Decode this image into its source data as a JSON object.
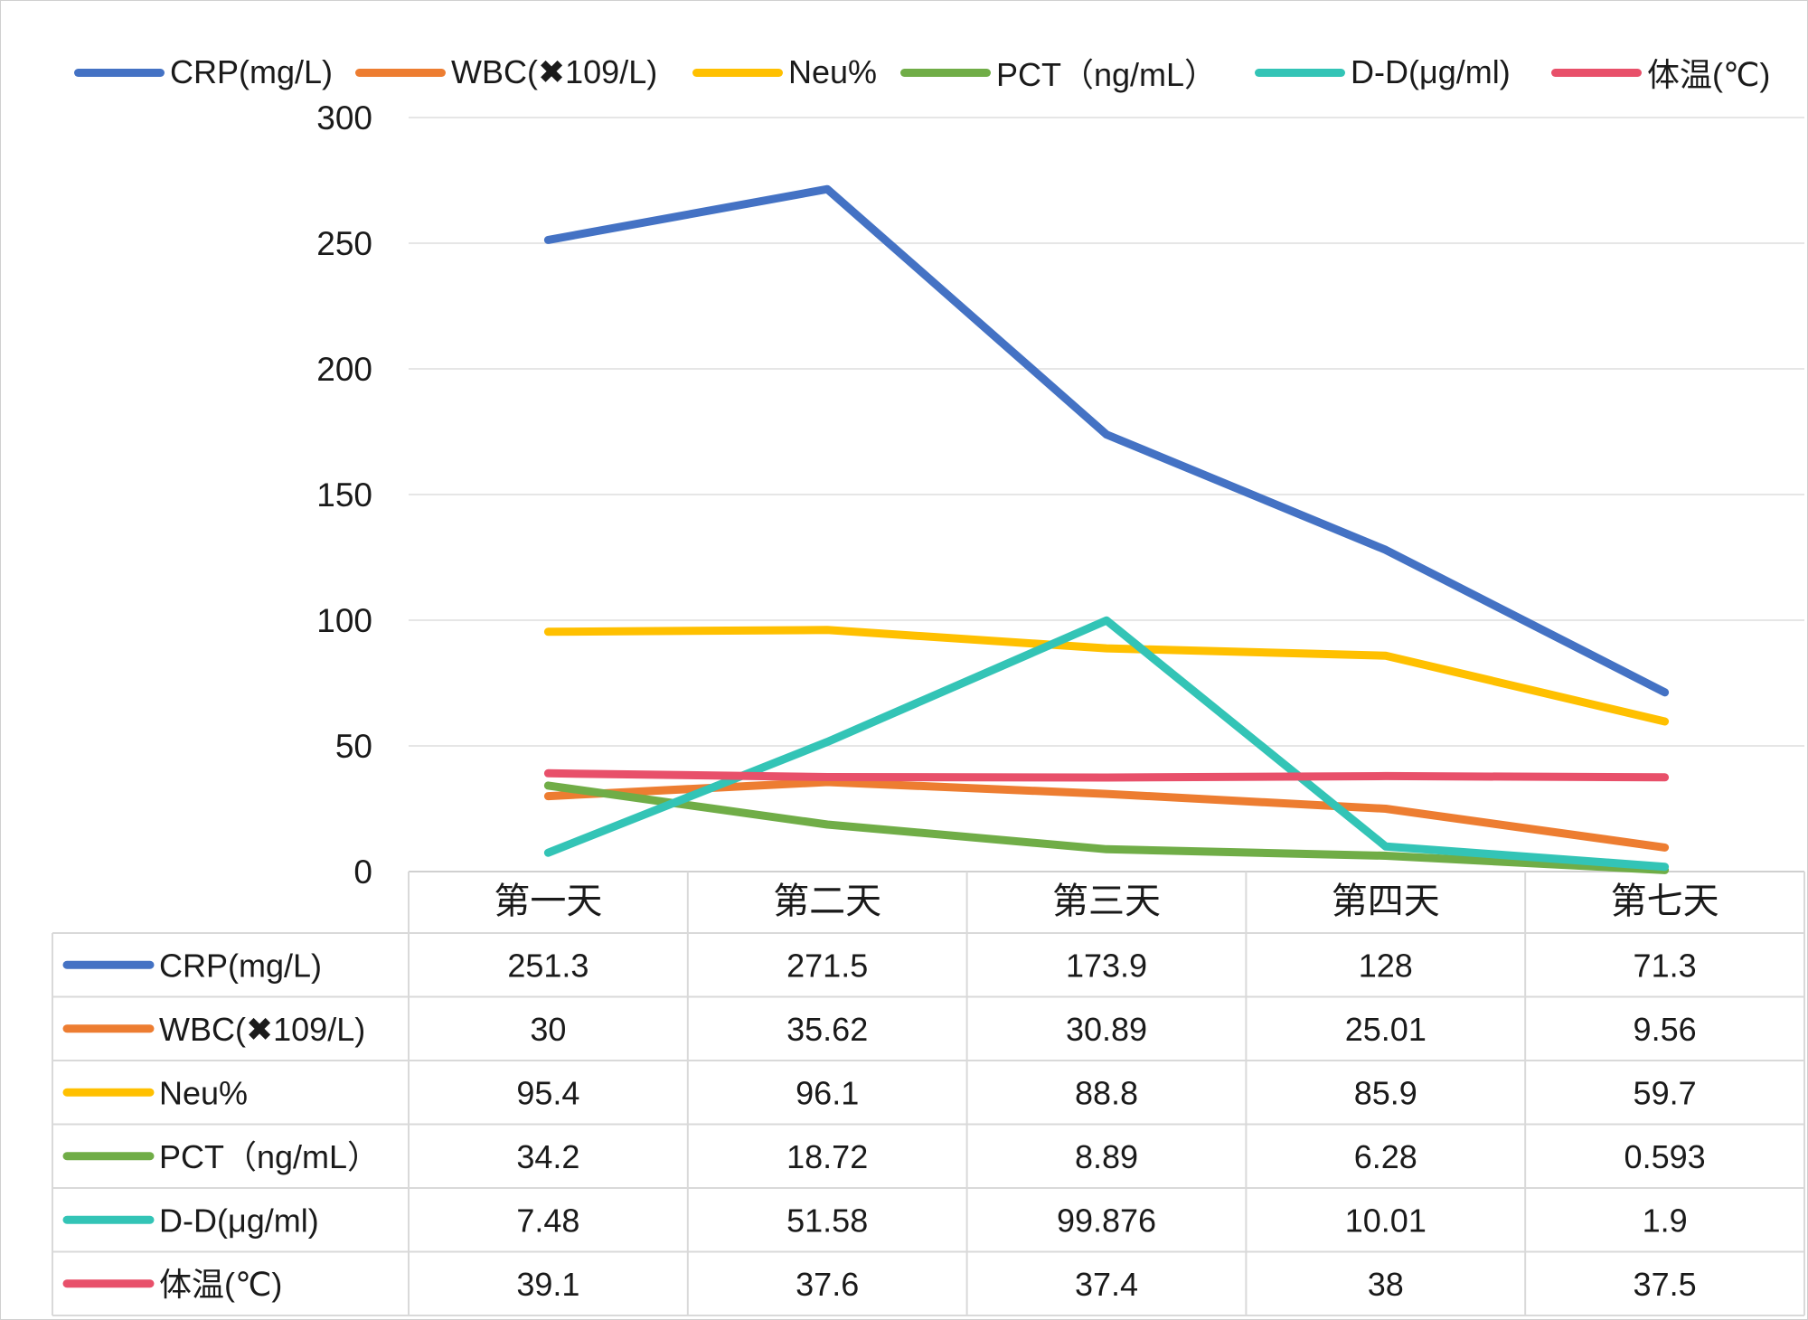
{
  "chart_data": {
    "type": "line",
    "categories": [
      "第一天",
      "第二天",
      "第三天",
      "第四天",
      "第七天"
    ],
    "ylim": [
      0,
      300
    ],
    "yticks": [
      0,
      50,
      100,
      150,
      200,
      250,
      300
    ],
    "grid": true,
    "legend_position": "top",
    "data_table": true,
    "series": [
      {
        "name": "CRP(mg/L)",
        "color": "#4472C4",
        "values": [
          251.3,
          271.5,
          173.9,
          128,
          71.3
        ],
        "labels": [
          "251.3",
          "271.5",
          "173.9",
          "128",
          "71.3"
        ]
      },
      {
        "name": "WBC(✖109/L)",
        "color": "#ED7D31",
        "values": [
          30,
          35.62,
          30.89,
          25.01,
          9.56
        ],
        "labels": [
          "30",
          "35.62",
          "30.89",
          "25.01",
          "9.56"
        ]
      },
      {
        "name": "Neu%",
        "color": "#FFC000",
        "values": [
          95.4,
          96.1,
          88.8,
          85.9,
          59.7
        ],
        "labels": [
          "95.4",
          "96.1",
          "88.8",
          "85.9",
          "59.7"
        ]
      },
      {
        "name": "PCT（ng/mL）",
        "color": "#70AD47",
        "values": [
          34.2,
          18.72,
          8.89,
          6.28,
          0.593
        ],
        "labels": [
          "34.2",
          "18.72",
          "8.89",
          "6.28",
          "0.593"
        ]
      },
      {
        "name": "D-D(μg/ml)",
        "color": "#33C4B6",
        "values": [
          7.48,
          51.58,
          99.876,
          10.01,
          1.9
        ],
        "labels": [
          "7.48",
          "51.58",
          "99.876",
          "10.01",
          "1.9"
        ]
      },
      {
        "name": "体温(℃)",
        "color": "#E8506A",
        "values": [
          39.1,
          37.6,
          37.4,
          38,
          37.5
        ],
        "labels": [
          "39.1",
          "37.6",
          "37.4",
          "38",
          "37.5"
        ]
      }
    ]
  }
}
